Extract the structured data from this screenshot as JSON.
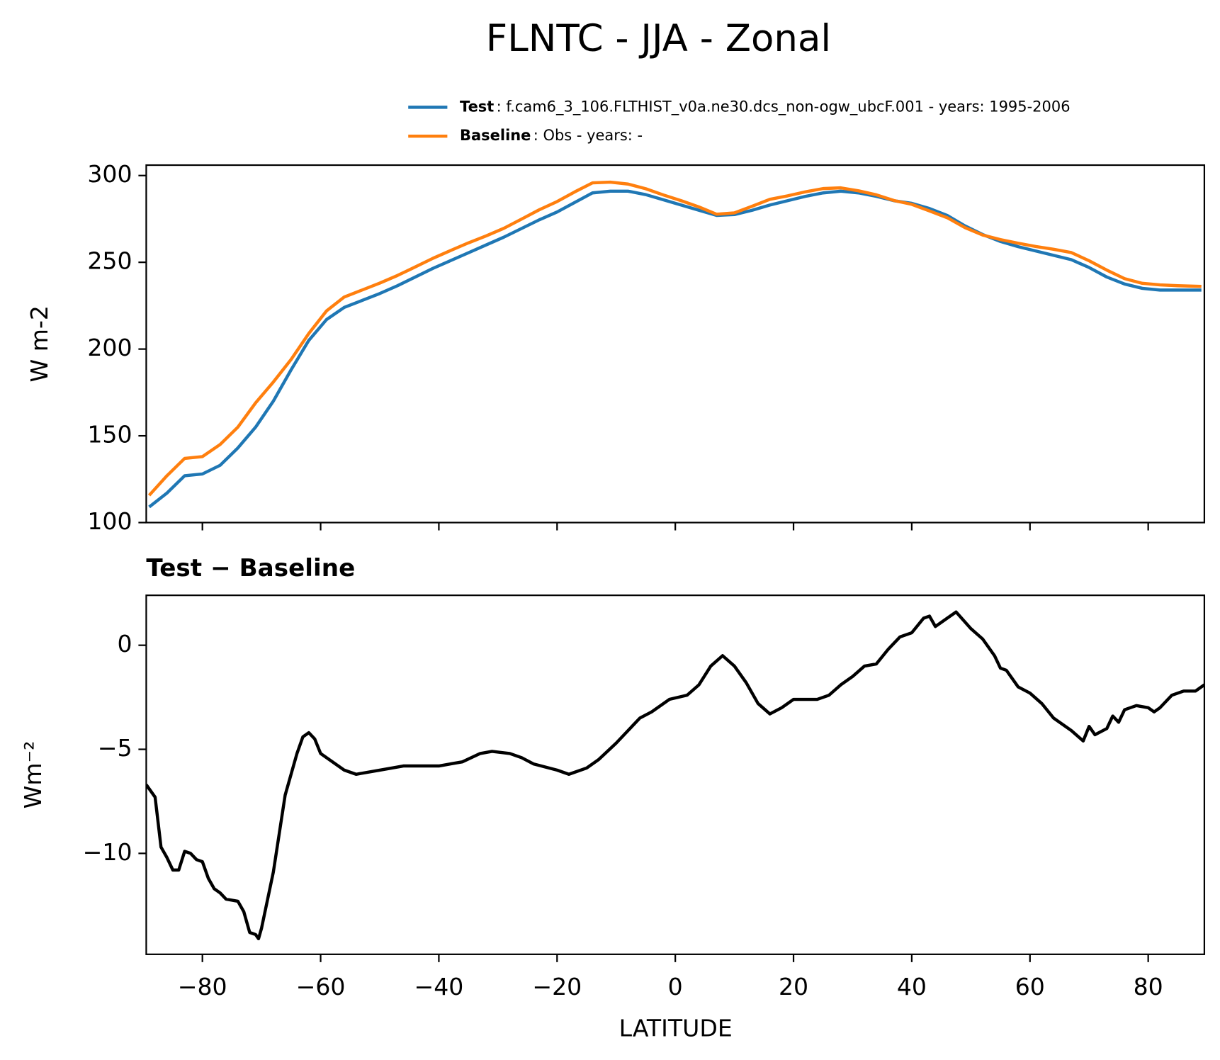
{
  "chart_data": [
    {
      "type": "line",
      "title": "FLNTC - JJA - Zonal",
      "ylabel": "W m-2",
      "x": [
        -89,
        -86,
        -83,
        -80,
        -77,
        -74,
        -71,
        -68,
        -65,
        -62,
        -59,
        -56,
        -53,
        -50,
        -47,
        -44,
        -41,
        -38,
        -35,
        -32,
        -29,
        -26,
        -23,
        -20,
        -17,
        -14,
        -11,
        -8,
        -5,
        -2,
        1,
        4,
        7,
        10,
        13,
        16,
        19,
        22,
        25,
        28,
        31,
        34,
        37,
        40,
        43,
        46,
        49,
        52,
        55,
        58,
        61,
        64,
        67,
        70,
        73,
        76,
        79,
        82,
        85,
        88,
        89
      ],
      "series": [
        {
          "name": "Test",
          "description": ": f.cam6_3_106.FLTHIST_v0a.ne30.dcs_non-ogw_ubcF.001 - years: 1995-2006",
          "color": "#1f77b4",
          "values": [
            109,
            117,
            127,
            128,
            133,
            143,
            155,
            170,
            188,
            205,
            217,
            224,
            228,
            232,
            236.5,
            241.5,
            246.5,
            251,
            255.5,
            260,
            264.5,
            269.5,
            274.5,
            279,
            284.5,
            290,
            291,
            291,
            289,
            286,
            283,
            280,
            277,
            277.5,
            280,
            283,
            285.5,
            288,
            290,
            291,
            290,
            288,
            285.5,
            284,
            281,
            277,
            271,
            266,
            262,
            259,
            256.5,
            254,
            251.5,
            247,
            241.5,
            237.5,
            235,
            234,
            234,
            234,
            234
          ]
        },
        {
          "name": "Baseline",
          "description": ": Obs - years: -",
          "color": "#ff7f0e",
          "values": [
            115.7,
            127,
            137,
            138,
            145,
            155,
            169,
            181,
            194,
            209,
            222,
            230,
            234,
            238,
            242.4,
            247.3,
            252.3,
            256.8,
            261.2,
            265.2,
            269.6,
            274.9,
            280.3,
            285,
            290.6,
            295.8,
            296.2,
            295.1,
            292.4,
            288.8,
            285.5,
            281.9,
            277.7,
            278.5,
            282.3,
            286.3,
            288.3,
            290.6,
            292.5,
            292.9,
            291.2,
            288.9,
            285.6,
            283.4,
            279.6,
            275.7,
            270,
            265.7,
            263.1,
            261,
            259.1,
            257.5,
            255.6,
            250.9,
            245.5,
            240.6,
            237.9,
            237,
            236.5,
            236.2,
            236.1
          ]
        }
      ],
      "xlim": [
        -89.5,
        89.5
      ],
      "xticks": [
        -80,
        -60,
        -40,
        -20,
        0,
        20,
        40,
        60,
        80
      ],
      "xtick_labels": false,
      "ylim": [
        100,
        306
      ],
      "yticks": [
        100,
        150,
        200,
        250,
        300
      ],
      "legend": "upper right"
    },
    {
      "type": "line",
      "title": "Test − Baseline",
      "xlabel": "LATITUDE",
      "ylabel": "Wm⁻²",
      "x": [
        -89.5,
        -88,
        -87,
        -86,
        -85,
        -84,
        -83,
        -82,
        -81,
        -80,
        -79,
        -78,
        -77,
        -76,
        -74,
        -73,
        -72,
        -71,
        -70.5,
        -70,
        -68,
        -66,
        -64,
        -63,
        -62,
        -61,
        -60,
        -58,
        -56,
        -54,
        -50,
        -46,
        -40,
        -36,
        -33,
        -31,
        -28,
        -26,
        -24,
        -20,
        -18,
        -15,
        -13,
        -10,
        -8,
        -6,
        -4,
        -1,
        2,
        4,
        6,
        8,
        10,
        12,
        14,
        16,
        18,
        20,
        24,
        26,
        28,
        30,
        32,
        34,
        36,
        38,
        40,
        42,
        43,
        44,
        46,
        47.5,
        50,
        52,
        54,
        55,
        56,
        58,
        60,
        62,
        64,
        66,
        67,
        69,
        70,
        71,
        73,
        74,
        75,
        76,
        78,
        80,
        81,
        82,
        84,
        86,
        88,
        89.5
      ],
      "series": [
        {
          "name": "Test − Baseline",
          "color": "#000000",
          "values": [
            -6.7,
            -7.3,
            -9.7,
            -10.2,
            -10.8,
            -10.8,
            -9.9,
            -10,
            -10.3,
            -10.4,
            -11.2,
            -11.7,
            -11.9,
            -12.2,
            -12.3,
            -12.8,
            -13.8,
            -13.9,
            -14.1,
            -13.6,
            -10.9,
            -7.2,
            -5.2,
            -4.4,
            -4.2,
            -4.5,
            -5.2,
            -5.6,
            -6.0,
            -6.2,
            -6.0,
            -5.8,
            -5.8,
            -5.6,
            -5.2,
            -5.1,
            -5.2,
            -5.4,
            -5.7,
            -6.0,
            -6.2,
            -5.9,
            -5.5,
            -4.7,
            -4.1,
            -3.5,
            -3.2,
            -2.6,
            -2.4,
            -1.9,
            -1.0,
            -0.5,
            -1.0,
            -1.8,
            -2.8,
            -3.3,
            -3.0,
            -2.6,
            -2.6,
            -2.4,
            -1.9,
            -1.5,
            -1.0,
            -0.9,
            -0.2,
            0.4,
            0.6,
            1.3,
            1.4,
            0.9,
            1.3,
            1.6,
            0.8,
            0.3,
            -0.5,
            -1.1,
            -1.2,
            -2.0,
            -2.3,
            -2.8,
            -3.5,
            -3.9,
            -4.1,
            -4.6,
            -3.9,
            -4.3,
            -4.0,
            -3.4,
            -3.7,
            -3.1,
            -2.9,
            -3.0,
            -3.2,
            -3.0,
            -2.4,
            -2.2,
            -2.2,
            -1.9
          ]
        }
      ],
      "xlim": [
        -89.5,
        89.5
      ],
      "xticks": [
        {
          "value": -80,
          "label": "−80"
        },
        {
          "value": -60,
          "label": "−60"
        },
        {
          "value": -40,
          "label": "−40"
        },
        {
          "value": -20,
          "label": "−20"
        },
        0,
        20,
        40,
        60,
        80
      ],
      "ylim": [
        -14.85,
        2.4
      ],
      "yticks": [
        {
          "value": -10,
          "label": "−10"
        },
        {
          "value": -5,
          "label": "−5"
        },
        0
      ]
    }
  ]
}
